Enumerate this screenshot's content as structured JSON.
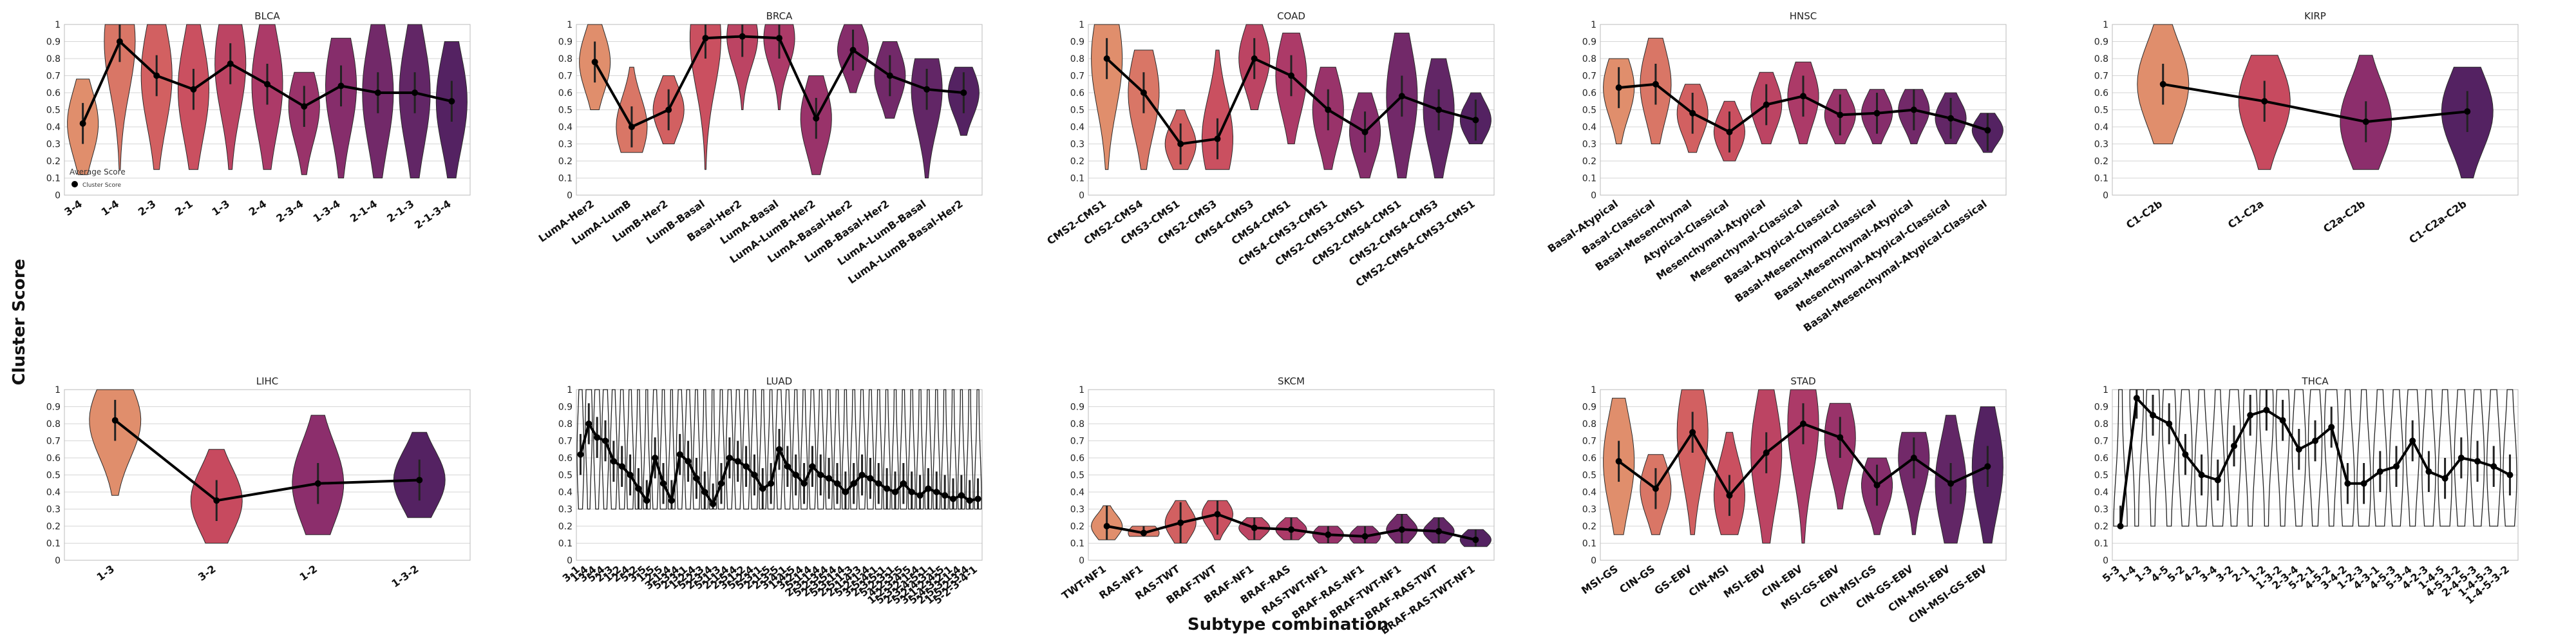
{
  "figure": {
    "ylabel": "Cluster Score",
    "xlabel": "Subtype combination"
  },
  "legend": {
    "title": "Average Score",
    "entry": "Cluster Score"
  },
  "chart_data": [
    {
      "type": "violin",
      "title": "BLCA",
      "ylim": [
        0,
        1
      ],
      "yticks": [
        0,
        0.1,
        0.2,
        0.3,
        0.4,
        0.5,
        0.6,
        0.7,
        0.8,
        0.9,
        1
      ],
      "categories": [
        "3-4",
        "1-4",
        "2-3",
        "2-1",
        "1-3",
        "2-4",
        "2-3-4",
        "1-3-4",
        "2-1-4",
        "2-1-3",
        "2-1-3-4"
      ],
      "mean_line": [
        0.42,
        0.9,
        0.7,
        0.62,
        0.77,
        0.65,
        0.52,
        0.64,
        0.6,
        0.6,
        0.55
      ],
      "spread": [
        [
          0.12,
          0.68
        ],
        [
          0.15,
          1.0
        ],
        [
          0.15,
          1.0
        ],
        [
          0.15,
          1.0
        ],
        [
          0.15,
          1.0
        ],
        [
          0.15,
          1.0
        ],
        [
          0.12,
          0.72
        ],
        [
          0.1,
          0.92
        ],
        [
          0.1,
          1.0
        ],
        [
          0.1,
          1.0
        ],
        [
          0.1,
          0.9
        ]
      ],
      "legend": "top-left-inside"
    },
    {
      "type": "violin",
      "title": "BRCA",
      "ylim": [
        0,
        1
      ],
      "yticks": [
        0,
        0.1,
        0.2,
        0.3,
        0.4,
        0.5,
        0.6,
        0.7,
        0.8,
        0.9,
        1
      ],
      "categories": [
        "LumA-Her2",
        "LumA-LumB",
        "LumB-Her2",
        "LumB-Basal",
        "Basal-Her2",
        "LumA-Basal",
        "LumA-LumB-Her2",
        "LumA-Basal-Her2",
        "LumB-Basal-Her2",
        "LumA-LumB-Basal",
        "LumA-LumB-Basal-Her2"
      ],
      "mean_line": [
        0.78,
        0.4,
        0.5,
        0.92,
        0.93,
        0.92,
        0.45,
        0.85,
        0.7,
        0.62,
        0.6
      ],
      "spread": [
        [
          0.5,
          1.0
        ],
        [
          0.25,
          0.75
        ],
        [
          0.3,
          0.7
        ],
        [
          0.15,
          1.0
        ],
        [
          0.5,
          1.0
        ],
        [
          0.5,
          1.0
        ],
        [
          0.12,
          0.7
        ],
        [
          0.6,
          1.0
        ],
        [
          0.45,
          0.9
        ],
        [
          0.1,
          0.8
        ],
        [
          0.35,
          0.75
        ]
      ]
    },
    {
      "type": "violin",
      "title": "COAD",
      "ylim": [
        0,
        1
      ],
      "yticks": [
        0,
        0.1,
        0.2,
        0.3,
        0.4,
        0.5,
        0.6,
        0.7,
        0.8,
        0.9,
        1
      ],
      "categories": [
        "CMS2-CMS1",
        "CMS2-CMS4",
        "CMS3-CMS1",
        "CMS2-CMS3",
        "CMS4-CMS3",
        "CMS4-CMS1",
        "CMS4-CMS3-CMS1",
        "CMS2-CMS3-CMS1",
        "CMS2-CMS4-CMS1",
        "CMS2-CMS4-CMS3",
        "CMS2-CMS4-CMS3-CMS1"
      ],
      "mean_line": [
        0.8,
        0.6,
        0.3,
        0.33,
        0.8,
        0.7,
        0.5,
        0.37,
        0.58,
        0.5,
        0.44
      ],
      "spread": [
        [
          0.15,
          1.0
        ],
        [
          0.15,
          0.85
        ],
        [
          0.15,
          0.5
        ],
        [
          0.15,
          0.85
        ],
        [
          0.5,
          1.0
        ],
        [
          0.3,
          0.95
        ],
        [
          0.15,
          0.75
        ],
        [
          0.1,
          0.6
        ],
        [
          0.1,
          0.95
        ],
        [
          0.1,
          0.8
        ],
        [
          0.3,
          0.6
        ]
      ]
    },
    {
      "type": "violin",
      "title": "HNSC",
      "ylim": [
        0,
        1
      ],
      "yticks": [
        0,
        0.1,
        0.2,
        0.3,
        0.4,
        0.5,
        0.6,
        0.7,
        0.8,
        0.9,
        1
      ],
      "categories": [
        "Basal-Atypical",
        "Basal-Classical",
        "Basal-Mesenchymal",
        "Atypical-Classical",
        "Mesenchymal-Atypical",
        "Mesenchymal-Classical",
        "Basal-Atypical-Classical",
        "Basal-Mesenchymal-Classical",
        "Basal-Mesenchymal-Atypical",
        "Mesenchymal-Atypical-Classical",
        "Basal-Mesenchymal-Atypical-Classical"
      ],
      "mean_line": [
        0.63,
        0.65,
        0.48,
        0.37,
        0.53,
        0.58,
        0.47,
        0.48,
        0.5,
        0.45,
        0.38
      ],
      "spread": [
        [
          0.3,
          0.8
        ],
        [
          0.3,
          0.92
        ],
        [
          0.25,
          0.65
        ],
        [
          0.2,
          0.55
        ],
        [
          0.3,
          0.72
        ],
        [
          0.3,
          0.78
        ],
        [
          0.3,
          0.62
        ],
        [
          0.3,
          0.62
        ],
        [
          0.3,
          0.62
        ],
        [
          0.3,
          0.6
        ],
        [
          0.25,
          0.48
        ]
      ]
    },
    {
      "type": "violin",
      "title": "KIRP",
      "ylim": [
        0,
        1
      ],
      "yticks": [
        0,
        0.1,
        0.2,
        0.3,
        0.4,
        0.5,
        0.6,
        0.7,
        0.8,
        0.9,
        1
      ],
      "categories": [
        "C1-C2b",
        "C1-C2a",
        "C2a-C2b",
        "C1-C2a-C2b"
      ],
      "mean_line": [
        0.65,
        0.55,
        0.43,
        0.49
      ],
      "spread": [
        [
          0.3,
          1.0
        ],
        [
          0.15,
          0.82
        ],
        [
          0.15,
          0.82
        ],
        [
          0.1,
          0.75
        ]
      ]
    },
    {
      "type": "violin",
      "title": "LIHC",
      "ylim": [
        0,
        1
      ],
      "yticks": [
        0,
        0.1,
        0.2,
        0.3,
        0.4,
        0.5,
        0.6,
        0.7,
        0.8,
        0.9,
        1
      ],
      "categories": [
        "1-3",
        "3-2",
        "1-2",
        "1-3-2"
      ],
      "mean_line": [
        0.82,
        0.35,
        0.45,
        0.47
      ],
      "spread": [
        [
          0.38,
          1.0
        ],
        [
          0.1,
          0.65
        ],
        [
          0.15,
          0.85
        ],
        [
          0.25,
          0.75
        ]
      ]
    },
    {
      "type": "violin",
      "title": "LUAD",
      "ylim": [
        0,
        1
      ],
      "yticks": [
        0,
        0.1,
        0.2,
        0.3,
        0.4,
        0.5,
        0.6,
        0.7,
        0.8,
        0.9,
        1
      ],
      "categories": [
        "3-1",
        "1-4",
        "3-4",
        "5-4",
        "2-3",
        "1-2",
        "2-4",
        "5-2",
        "3-5",
        "1-5",
        "2-5",
        "3-1-4",
        "5-3-4",
        "2-3-1",
        "1-2-4",
        "5-2-3",
        "2-3-4",
        "5-1-3",
        "2-1-4",
        "2-5-4",
        "3-1-2",
        "5-2-4",
        "5-3-1",
        "2-1-5",
        "2-3-5",
        "3-4-1",
        "1-4-5",
        "3-2-4",
        "5-1-4",
        "2-3-1-4",
        "5-2-3-4",
        "2-3-5-4",
        "5-3-1-4",
        "2-5-1-3",
        "2-1-4-3",
        "5-2-1-4",
        "3-5-4-1",
        "2-3-5-1",
        "5-2-3-1",
        "4-2-3-5",
        "1-2-3-4-5",
        "5-3-2-1-4",
        "2-3-4-5-1",
        "5-2-4-3-1",
        "3-1-2-4-5",
        "5-4-3-2-1",
        "2-5-3-1-4",
        "1-5-2-3-4",
        "5-2-3-4-1"
      ],
      "mean_line": [
        0.62,
        0.8,
        0.72,
        0.7,
        0.58,
        0.55,
        0.5,
        0.42,
        0.35,
        0.6,
        0.45,
        0.35,
        0.62,
        0.58,
        0.48,
        0.4,
        0.33,
        0.45,
        0.6,
        0.58,
        0.55,
        0.5,
        0.42,
        0.45,
        0.65,
        0.55,
        0.5,
        0.45,
        0.55,
        0.5,
        0.48,
        0.45,
        0.4,
        0.45,
        0.5,
        0.48,
        0.45,
        0.42,
        0.4,
        0.45,
        0.4,
        0.38,
        0.42,
        0.4,
        0.38,
        0.36,
        0.38,
        0.35,
        0.36
      ],
      "spread": [
        0.3,
        1.0
      ]
    },
    {
      "type": "violin",
      "title": "SKCM",
      "ylim": [
        0,
        1
      ],
      "yticks": [
        0,
        0.1,
        0.2,
        0.3,
        0.4,
        0.5,
        0.6,
        0.7,
        0.8,
        0.9,
        1
      ],
      "categories": [
        "TWT-NF1",
        "RAS-NF1",
        "RAS-TWT",
        "BRAF-TWT",
        "BRAF-NF1",
        "BRAF-RAS",
        "RAS-TWT-NF1",
        "BRAF-RAS-NF1",
        "BRAF-TWT-NF1",
        "BRAF-RAS-TWT",
        "BRAF-RAS-TWT-NF1"
      ],
      "mean_line": [
        0.2,
        0.16,
        0.22,
        0.27,
        0.19,
        0.18,
        0.15,
        0.14,
        0.18,
        0.17,
        0.12
      ],
      "spread": [
        [
          0.12,
          0.32
        ],
        [
          0.14,
          0.2
        ],
        [
          0.1,
          0.35
        ],
        [
          0.12,
          0.35
        ],
        [
          0.12,
          0.25
        ],
        [
          0.12,
          0.25
        ],
        [
          0.1,
          0.2
        ],
        [
          0.1,
          0.2
        ],
        [
          0.1,
          0.27
        ],
        [
          0.1,
          0.25
        ],
        [
          0.08,
          0.18
        ]
      ]
    },
    {
      "type": "violin",
      "title": "STAD",
      "ylim": [
        0,
        1
      ],
      "yticks": [
        0,
        0.1,
        0.2,
        0.3,
        0.4,
        0.5,
        0.6,
        0.7,
        0.8,
        0.9,
        1
      ],
      "categories": [
        "MSI-GS",
        "CIN-GS",
        "GS-EBV",
        "CIN-MSI",
        "MSI-EBV",
        "CIN-EBV",
        "MSI-GS-EBV",
        "CIN-MSI-GS",
        "CIN-GS-EBV",
        "CIN-MSI-EBV",
        "CIN-MSI-GS-EBV"
      ],
      "mean_line": [
        0.58,
        0.42,
        0.75,
        0.38,
        0.63,
        0.8,
        0.72,
        0.44,
        0.6,
        0.45,
        0.55
      ],
      "spread": [
        [
          0.15,
          0.95
        ],
        [
          0.15,
          0.62
        ],
        [
          0.15,
          1.0
        ],
        [
          0.15,
          0.75
        ],
        [
          0.1,
          1.0
        ],
        [
          0.1,
          1.0
        ],
        [
          0.3,
          0.92
        ],
        [
          0.15,
          0.6
        ],
        [
          0.15,
          0.75
        ],
        [
          0.1,
          0.85
        ],
        [
          0.1,
          0.9
        ]
      ]
    },
    {
      "type": "violin",
      "title": "THCA",
      "ylim": [
        0,
        1
      ],
      "yticks": [
        0,
        0.1,
        0.2,
        0.3,
        0.4,
        0.5,
        0.6,
        0.7,
        0.8,
        0.9,
        1
      ],
      "categories": [
        "5-3",
        "1-4",
        "1-3",
        "4-5",
        "5-2",
        "4-2",
        "3-4",
        "3-2",
        "2-1",
        "1-2",
        "1-3-2",
        "2-3-4",
        "5-2-1",
        "4-5-2",
        "3-4-2",
        "1-2-3",
        "4-3-1",
        "4-5-3",
        "5-3-4",
        "4-2-3",
        "1-4-5",
        "4-5-3-2",
        "2-4-5-3",
        "1-4-5-3",
        "1-4-5-3-2"
      ],
      "mean_line": [
        0.2,
        0.95,
        0.85,
        0.8,
        0.62,
        0.5,
        0.47,
        0.67,
        0.85,
        0.88,
        0.82,
        0.65,
        0.7,
        0.78,
        0.45,
        0.45,
        0.52,
        0.55,
        0.7,
        0.52,
        0.48,
        0.6,
        0.58,
        0.55,
        0.5
      ],
      "spread": [
        0.2,
        1.0
      ]
    }
  ]
}
